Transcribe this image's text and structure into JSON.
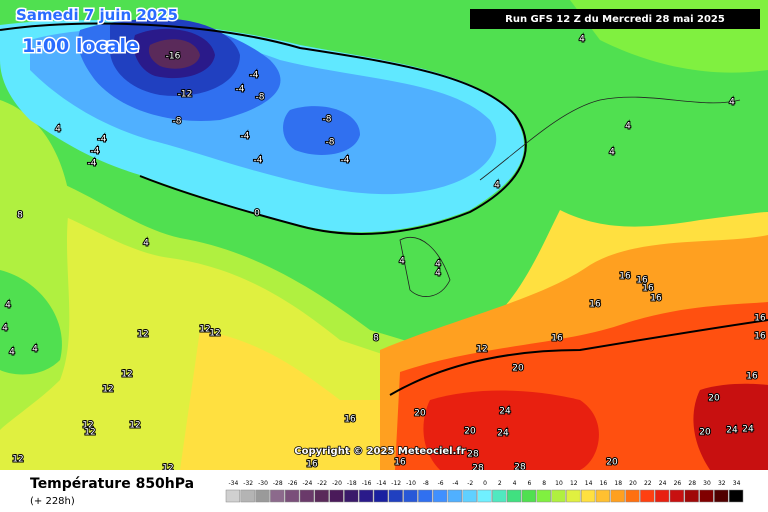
{
  "header": {
    "title": "Samedi 7 juin 2025",
    "time": "1:00 locale",
    "run": "Run GFS 12 Z du Mercredi 28 mai 2025"
  },
  "copyright": "Copyright © 2025 Meteociel.fr",
  "footer": {
    "parameter": "Température 850hPa",
    "lead": "(+ 228h)"
  },
  "legend": {
    "ticks": [
      -34,
      -32,
      -30,
      -28,
      -26,
      -24,
      -22,
      -20,
      -18,
      -16,
      -14,
      -12,
      -10,
      -8,
      -6,
      -4,
      -2,
      0,
      2,
      4,
      6,
      8,
      10,
      12,
      14,
      16,
      18,
      20,
      22,
      24,
      26,
      28,
      30,
      32,
      34
    ],
    "colors": [
      "#d0d0d0",
      "#b4b4b4",
      "#9a9a9a",
      "#8c6a8c",
      "#7a4f7a",
      "#6a3a6a",
      "#5a2a5a",
      "#4a1a5a",
      "#3a1a6a",
      "#2a1a8a",
      "#1a20a0",
      "#2040c0",
      "#2858d8",
      "#3070f0",
      "#4090ff",
      "#50b0ff",
      "#60d0ff",
      "#70f0ff",
      "#50e8c0",
      "#40e080",
      "#50e050",
      "#80f040",
      "#b0f040",
      "#e0f040",
      "#ffe040",
      "#ffc030",
      "#ffa020",
      "#ff7010",
      "#ff4010",
      "#e82010",
      "#c81010",
      "#a00808",
      "#800000",
      "#500000",
      "#000000"
    ]
  },
  "map": {
    "labels": [
      -16,
      -12,
      -8,
      -4,
      -4,
      -8,
      -4,
      -4,
      -4,
      -4,
      -4,
      -8,
      -8,
      -4,
      0,
      4,
      4,
      4,
      4,
      4,
      4,
      4,
      4,
      4,
      4,
      4,
      4,
      4,
      4,
      8,
      8,
      12,
      12,
      12,
      12,
      12,
      12,
      12,
      12,
      12,
      12,
      12,
      16,
      16,
      16,
      16,
      16,
      16,
      16,
      16,
      16,
      16,
      16,
      16,
      20,
      20,
      20,
      20,
      20,
      20,
      24,
      24,
      24,
      24,
      28,
      28,
      28
    ]
  }
}
